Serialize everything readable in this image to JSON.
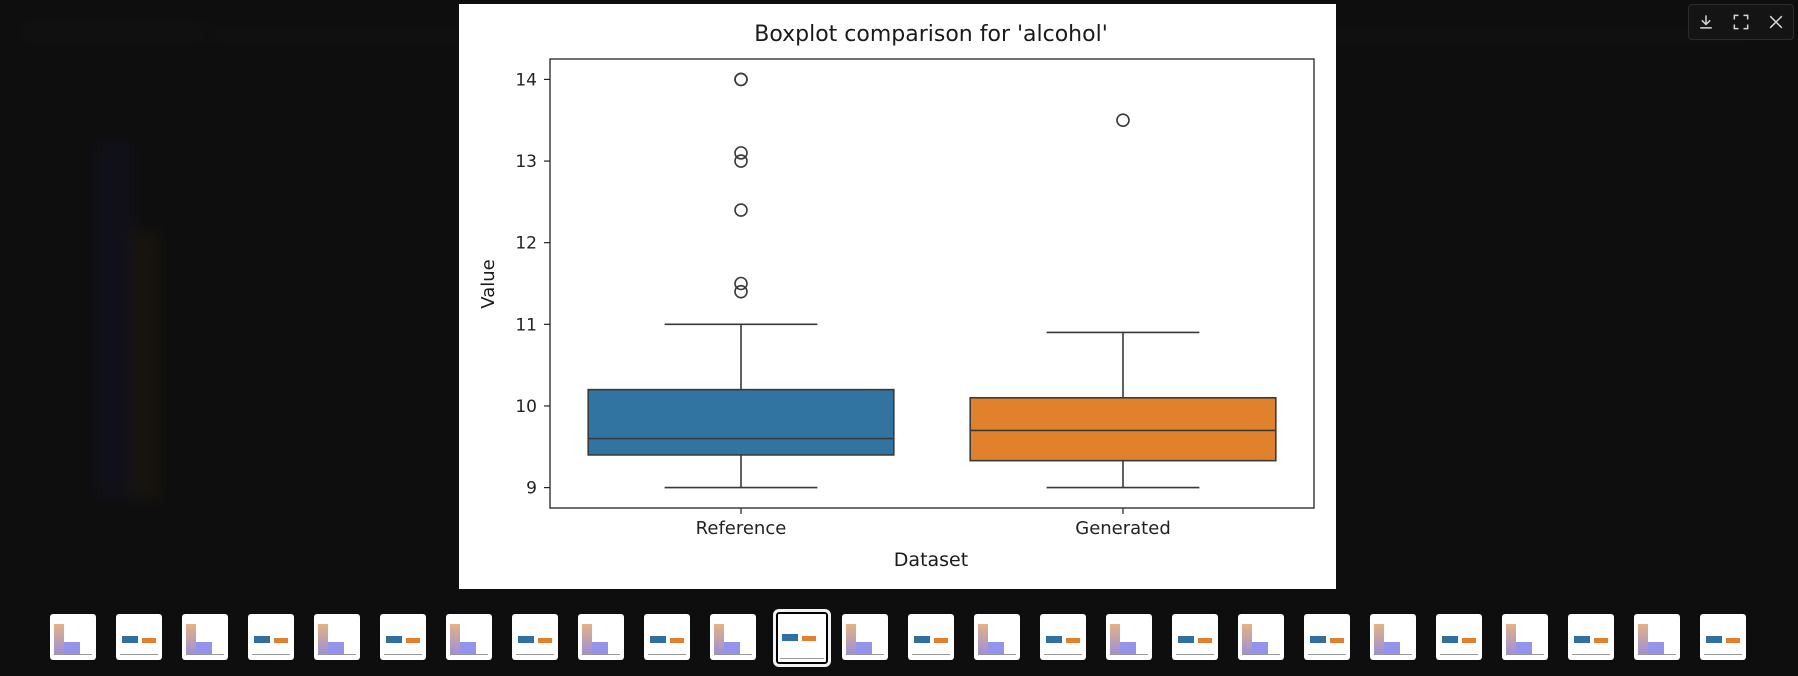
{
  "toolbar": {
    "download_icon": "download-icon",
    "fullscreen_icon": "fullscreen-icon",
    "close_icon": "close-icon"
  },
  "chart_data": {
    "type": "box",
    "title": "Boxplot comparison for 'alcohol'",
    "xlabel": "Dataset",
    "ylabel": "Value",
    "ylim": [
      8.75,
      14.25
    ],
    "yticks": [
      9,
      10,
      11,
      12,
      13,
      14
    ],
    "categories": [
      "Reference",
      "Generated"
    ],
    "colors": [
      "#3274a1",
      "#e1812c"
    ],
    "series": [
      {
        "name": "Reference",
        "whisker_low": 9.0,
        "q1": 9.4,
        "median": 9.6,
        "q3": 10.2,
        "whisker_high": 11.0,
        "outliers": [
          11.4,
          11.5,
          12.4,
          13.0,
          13.1,
          14.0,
          14.0
        ]
      },
      {
        "name": "Generated",
        "whisker_low": 9.0,
        "q1": 9.33,
        "median": 9.7,
        "q3": 10.1,
        "whisker_high": 10.9,
        "outliers": [
          13.5
        ]
      }
    ]
  },
  "thumbnails": {
    "count": 26,
    "active_index": 11,
    "kinds": [
      "hist",
      "box",
      "hist",
      "box",
      "hist",
      "box",
      "hist",
      "box",
      "hist",
      "box",
      "hist",
      "box",
      "hist",
      "box",
      "hist",
      "box",
      "hist",
      "box",
      "hist",
      "box",
      "hist",
      "box",
      "hist",
      "box",
      "hist",
      "box"
    ]
  }
}
